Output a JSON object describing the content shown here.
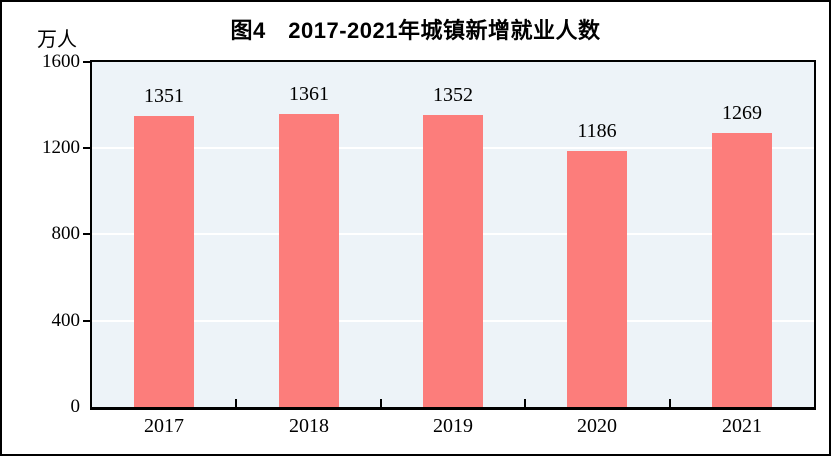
{
  "figure": {
    "name": "figure-4",
    "background": "#ffffff",
    "frame_color": "#000000"
  },
  "chart_data": {
    "type": "bar",
    "title": "图4　2017-2021年城镇新增就业人数",
    "ylabel": "万人",
    "xlabel": "",
    "categories": [
      "2017",
      "2018",
      "2019",
      "2020",
      "2021"
    ],
    "values": [
      1351,
      1361,
      1352,
      1186,
      1269
    ],
    "ylim": [
      0,
      1600
    ],
    "yticks": [
      0,
      400,
      800,
      1200,
      1600
    ],
    "grid": true,
    "gridlines_at": [
      400,
      800,
      1200
    ],
    "legend": false,
    "data_labels": true,
    "bar_color": "#fc7d7b",
    "plot_background": "#edf3f8",
    "gridline_color": "#ffffff",
    "axis_color": "#000000",
    "text_color": "#000000"
  }
}
